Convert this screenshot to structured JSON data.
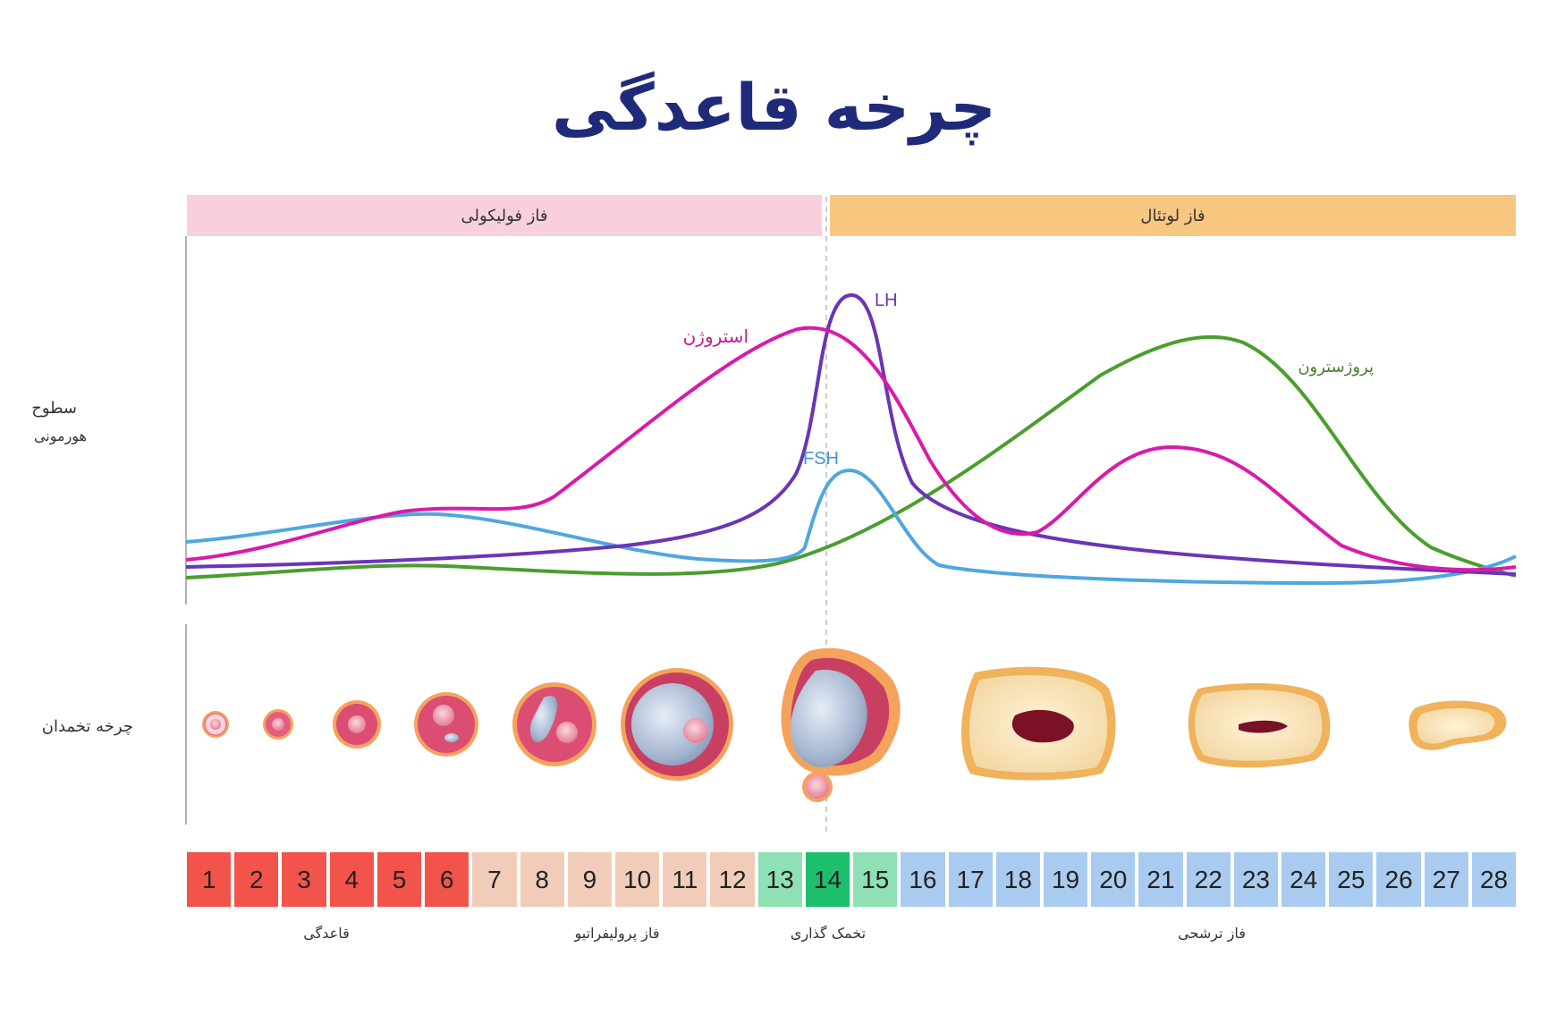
{
  "title": "چرخه قاعدگی",
  "phases": {
    "follicular": "فاز فولیکولی",
    "luteal": "فاز لوتئال"
  },
  "y_axis": {
    "hormone_line1": "سطوح",
    "hormone_line2": "هورمونی",
    "ovarian": "چرخه تخمدان"
  },
  "hormones": {
    "estrogen": {
      "label": "استروژن",
      "color": "#d91aa9"
    },
    "lh": {
      "label": "LH",
      "color": "#6a35b5"
    },
    "fsh": {
      "label": "FSH",
      "color": "#4fa7dd"
    },
    "progesterone": {
      "label": "پروژسترون",
      "color": "#4a9e2f"
    }
  },
  "days": [
    "1",
    "2",
    "3",
    "4",
    "5",
    "6",
    "7",
    "8",
    "9",
    "10",
    "11",
    "12",
    "13",
    "14",
    "15",
    "16",
    "17",
    "18",
    "19",
    "20",
    "21",
    "22",
    "23",
    "24",
    "25",
    "26",
    "27",
    "28"
  ],
  "day_phase": [
    "men",
    "men",
    "men",
    "men",
    "men",
    "men",
    "pro",
    "pro",
    "pro",
    "pro",
    "pro",
    "pro",
    "ovl",
    "ovd",
    "ovl",
    "sec",
    "sec",
    "sec",
    "sec",
    "sec",
    "sec",
    "sec",
    "sec",
    "sec",
    "sec",
    "sec",
    "sec",
    "sec"
  ],
  "uterine_phases": {
    "menstruation": "قاعدگی",
    "proliferative": "فاز پرولیفراتیو",
    "ovulation": "تخمک گذاری",
    "secretory": "فاز ترشحی"
  }
}
